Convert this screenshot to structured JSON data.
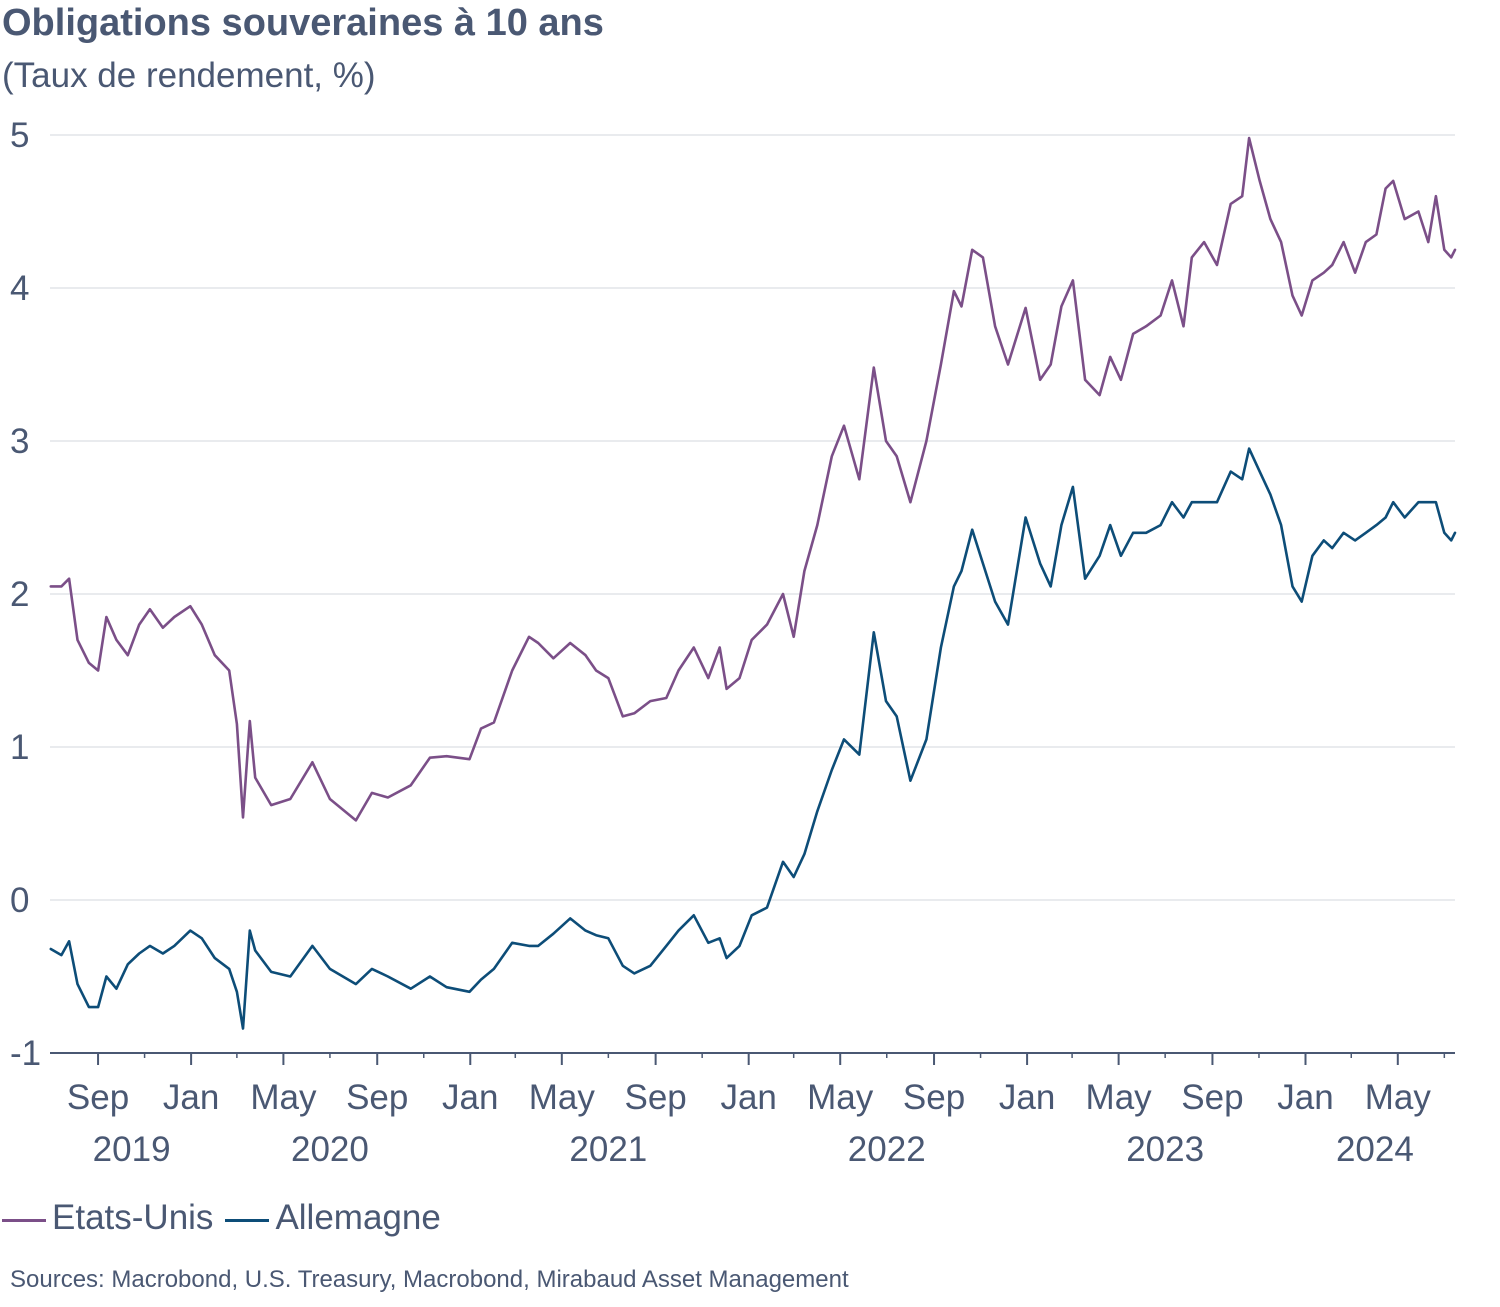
{
  "header": {
    "title": "Obligations souveraines à 10 ans",
    "subtitle": "(Taux de rendement, %)"
  },
  "source": "Sources: Macrobond, U.S. Treasury, Macrobond, Mirabaud Asset Management",
  "chart_data": {
    "type": "line",
    "title": "Obligations souveraines à 10 ans",
    "subtitle": "(Taux de rendement, %)",
    "xlabel": "",
    "ylabel": "",
    "ylim": [
      -1,
      5
    ],
    "xlim": [
      "2019-06-30",
      "2024-07-15"
    ],
    "yticks": [
      -1,
      0,
      1,
      2,
      3,
      4,
      5
    ],
    "ytick_labels": [
      "-1",
      "0",
      "1",
      "2",
      "3",
      "4",
      "5"
    ],
    "xticks": [
      {
        "date": "2019-09-01",
        "label": "Sep"
      },
      {
        "date": "2020-01-01",
        "label": "Jan"
      },
      {
        "date": "2020-05-01",
        "label": "May"
      },
      {
        "date": "2020-09-01",
        "label": "Sep"
      },
      {
        "date": "2021-01-01",
        "label": "Jan"
      },
      {
        "date": "2021-05-01",
        "label": "May"
      },
      {
        "date": "2021-09-01",
        "label": "Sep"
      },
      {
        "date": "2022-01-01",
        "label": "Jan"
      },
      {
        "date": "2022-05-01",
        "label": "May"
      },
      {
        "date": "2022-09-01",
        "label": "Sep"
      },
      {
        "date": "2023-01-01",
        "label": "Jan"
      },
      {
        "date": "2023-05-01",
        "label": "May"
      },
      {
        "date": "2023-09-01",
        "label": "Sep"
      },
      {
        "date": "2024-01-01",
        "label": "Jan"
      },
      {
        "date": "2024-05-01",
        "label": "May"
      }
    ],
    "minor_xticks": [
      "2019-11-01",
      "2020-03-01",
      "2020-07-01",
      "2020-11-01",
      "2021-03-01",
      "2021-07-01",
      "2021-11-01",
      "2022-03-01",
      "2022-07-01",
      "2022-11-01",
      "2023-03-01",
      "2023-07-01",
      "2023-11-01",
      "2024-03-01",
      "2024-07-01"
    ],
    "year_labels": [
      {
        "label": "2019",
        "date": "2019-10-15"
      },
      {
        "label": "2020",
        "date": "2020-07-01"
      },
      {
        "label": "2021",
        "date": "2021-07-01"
      },
      {
        "label": "2022",
        "date": "2022-07-01"
      },
      {
        "label": "2023",
        "date": "2023-07-01"
      },
      {
        "label": "2024",
        "date": "2024-04-01"
      }
    ],
    "grid": "horizontal",
    "legend": "bottom-left",
    "series": [
      {
        "name": "Etats-Unis",
        "color": "#7b4f88",
        "x": [
          "2019-07-01",
          "2019-07-15",
          "2019-07-25",
          "2019-08-05",
          "2019-08-20",
          "2019-09-01",
          "2019-09-12",
          "2019-09-25",
          "2019-10-10",
          "2019-10-25",
          "2019-11-08",
          "2019-11-25",
          "2019-12-10",
          "2019-12-31",
          "2020-01-15",
          "2020-02-01",
          "2020-02-20",
          "2020-03-01",
          "2020-03-09",
          "2020-03-18",
          "2020-03-25",
          "2020-04-15",
          "2020-05-10",
          "2020-06-08",
          "2020-07-01",
          "2020-08-04",
          "2020-08-25",
          "2020-09-15",
          "2020-10-15",
          "2020-11-09",
          "2020-12-01",
          "2020-12-31",
          "2021-01-15",
          "2021-02-01",
          "2021-02-25",
          "2021-03-19",
          "2021-03-31",
          "2021-04-20",
          "2021-05-12",
          "2021-06-01",
          "2021-06-15",
          "2021-07-01",
          "2021-07-20",
          "2021-08-04",
          "2021-08-25",
          "2021-09-15",
          "2021-10-01",
          "2021-10-21",
          "2021-11-09",
          "2021-11-24",
          "2021-12-03",
          "2021-12-20",
          "2022-01-05",
          "2022-01-25",
          "2022-02-15",
          "2022-03-01",
          "2022-03-15",
          "2022-04-01",
          "2022-04-20",
          "2022-05-06",
          "2022-05-26",
          "2022-06-14",
          "2022-06-30",
          "2022-07-14",
          "2022-08-01",
          "2022-08-22",
          "2022-09-10",
          "2022-09-27",
          "2022-10-07",
          "2022-10-21",
          "2022-11-04",
          "2022-11-20",
          "2022-12-07",
          "2022-12-30",
          "2023-01-18",
          "2023-02-01",
          "2023-02-15",
          "2023-03-02",
          "2023-03-18",
          "2023-04-06",
          "2023-04-20",
          "2023-05-04",
          "2023-05-20",
          "2023-06-06",
          "2023-06-25",
          "2023-07-10",
          "2023-07-25",
          "2023-08-05",
          "2023-08-21",
          "2023-09-07",
          "2023-09-25",
          "2023-10-10",
          "2023-10-19",
          "2023-11-02",
          "2023-11-16",
          "2023-11-30",
          "2023-12-15",
          "2023-12-27",
          "2024-01-10",
          "2024-01-25",
          "2024-02-05",
          "2024-02-20",
          "2024-03-06",
          "2024-03-20",
          "2024-04-03",
          "2024-04-15",
          "2024-04-25",
          "2024-05-10",
          "2024-05-28",
          "2024-06-10",
          "2024-06-20",
          "2024-07-01",
          "2024-07-10",
          "2024-07-15"
        ],
        "y": [
          2.05,
          2.05,
          2.1,
          1.7,
          1.55,
          1.5,
          1.85,
          1.7,
          1.6,
          1.8,
          1.9,
          1.78,
          1.85,
          1.92,
          1.8,
          1.6,
          1.5,
          1.15,
          0.54,
          1.17,
          0.8,
          0.62,
          0.66,
          0.9,
          0.66,
          0.52,
          0.7,
          0.67,
          0.75,
          0.93,
          0.94,
          0.92,
          1.12,
          1.16,
          1.5,
          1.72,
          1.68,
          1.58,
          1.68,
          1.6,
          1.5,
          1.45,
          1.2,
          1.22,
          1.3,
          1.32,
          1.5,
          1.65,
          1.45,
          1.65,
          1.38,
          1.45,
          1.7,
          1.8,
          2.0,
          1.72,
          2.15,
          2.45,
          2.9,
          3.1,
          2.75,
          3.48,
          3.0,
          2.9,
          2.6,
          3.0,
          3.5,
          3.98,
          3.88,
          4.25,
          4.2,
          3.75,
          3.5,
          3.87,
          3.4,
          3.5,
          3.88,
          4.05,
          3.4,
          3.3,
          3.55,
          3.4,
          3.7,
          3.75,
          3.82,
          4.05,
          3.75,
          4.2,
          4.3,
          4.15,
          4.55,
          4.6,
          4.98,
          4.7,
          4.45,
          4.3,
          3.95,
          3.82,
          4.05,
          4.1,
          4.15,
          4.3,
          4.1,
          4.3,
          4.35,
          4.65,
          4.7,
          4.45,
          4.5,
          4.3,
          4.6,
          4.25,
          4.2,
          4.25
        ]
      },
      {
        "name": "Allemagne",
        "color": "#0d4d78",
        "x": [
          "2019-07-01",
          "2019-07-15",
          "2019-07-25",
          "2019-08-05",
          "2019-08-20",
          "2019-09-01",
          "2019-09-12",
          "2019-09-25",
          "2019-10-10",
          "2019-10-25",
          "2019-11-08",
          "2019-11-25",
          "2019-12-10",
          "2019-12-31",
          "2020-01-15",
          "2020-02-01",
          "2020-02-20",
          "2020-03-01",
          "2020-03-09",
          "2020-03-18",
          "2020-03-25",
          "2020-04-15",
          "2020-05-10",
          "2020-06-08",
          "2020-07-01",
          "2020-08-04",
          "2020-08-25",
          "2020-09-15",
          "2020-10-15",
          "2020-11-09",
          "2020-12-01",
          "2020-12-31",
          "2021-01-15",
          "2021-02-01",
          "2021-02-25",
          "2021-03-19",
          "2021-03-31",
          "2021-04-20",
          "2021-05-12",
          "2021-06-01",
          "2021-06-15",
          "2021-07-01",
          "2021-07-20",
          "2021-08-04",
          "2021-08-25",
          "2021-09-15",
          "2021-10-01",
          "2021-10-21",
          "2021-11-09",
          "2021-11-24",
          "2021-12-03",
          "2021-12-20",
          "2022-01-05",
          "2022-01-25",
          "2022-02-15",
          "2022-03-01",
          "2022-03-15",
          "2022-04-01",
          "2022-04-20",
          "2022-05-06",
          "2022-05-26",
          "2022-06-14",
          "2022-06-30",
          "2022-07-14",
          "2022-08-01",
          "2022-08-22",
          "2022-09-10",
          "2022-09-27",
          "2022-10-07",
          "2022-10-21",
          "2022-11-04",
          "2022-11-20",
          "2022-12-07",
          "2022-12-30",
          "2023-01-18",
          "2023-02-01",
          "2023-02-15",
          "2023-03-02",
          "2023-03-18",
          "2023-04-06",
          "2023-04-20",
          "2023-05-04",
          "2023-05-20",
          "2023-06-06",
          "2023-06-25",
          "2023-07-10",
          "2023-07-25",
          "2023-08-05",
          "2023-08-21",
          "2023-09-07",
          "2023-09-25",
          "2023-10-10",
          "2023-10-19",
          "2023-11-02",
          "2023-11-16",
          "2023-11-30",
          "2023-12-15",
          "2023-12-27",
          "2024-01-10",
          "2024-01-25",
          "2024-02-05",
          "2024-02-20",
          "2024-03-06",
          "2024-03-20",
          "2024-04-03",
          "2024-04-15",
          "2024-04-25",
          "2024-05-10",
          "2024-05-28",
          "2024-06-10",
          "2024-06-20",
          "2024-07-01",
          "2024-07-10",
          "2024-07-15"
        ],
        "y": [
          -0.32,
          -0.36,
          -0.27,
          -0.55,
          -0.7,
          -0.7,
          -0.5,
          -0.58,
          -0.42,
          -0.35,
          -0.3,
          -0.35,
          -0.3,
          -0.2,
          -0.25,
          -0.38,
          -0.45,
          -0.6,
          -0.84,
          -0.2,
          -0.33,
          -0.47,
          -0.5,
          -0.3,
          -0.45,
          -0.55,
          -0.45,
          -0.5,
          -0.58,
          -0.5,
          -0.57,
          -0.6,
          -0.52,
          -0.45,
          -0.28,
          -0.3,
          -0.3,
          -0.22,
          -0.12,
          -0.2,
          -0.23,
          -0.25,
          -0.43,
          -0.48,
          -0.43,
          -0.3,
          -0.2,
          -0.1,
          -0.28,
          -0.25,
          -0.38,
          -0.3,
          -0.1,
          -0.05,
          0.25,
          0.15,
          0.3,
          0.58,
          0.85,
          1.05,
          0.95,
          1.75,
          1.3,
          1.2,
          0.78,
          1.05,
          1.65,
          2.05,
          2.15,
          2.42,
          2.2,
          1.95,
          1.8,
          2.5,
          2.2,
          2.05,
          2.45,
          2.7,
          2.1,
          2.25,
          2.45,
          2.25,
          2.4,
          2.4,
          2.45,
          2.6,
          2.5,
          2.6,
          2.6,
          2.6,
          2.8,
          2.75,
          2.95,
          2.8,
          2.65,
          2.45,
          2.05,
          1.95,
          2.25,
          2.35,
          2.3,
          2.4,
          2.35,
          2.4,
          2.45,
          2.5,
          2.6,
          2.5,
          2.6,
          2.6,
          2.6,
          2.4,
          2.35,
          2.4
        ]
      }
    ]
  }
}
